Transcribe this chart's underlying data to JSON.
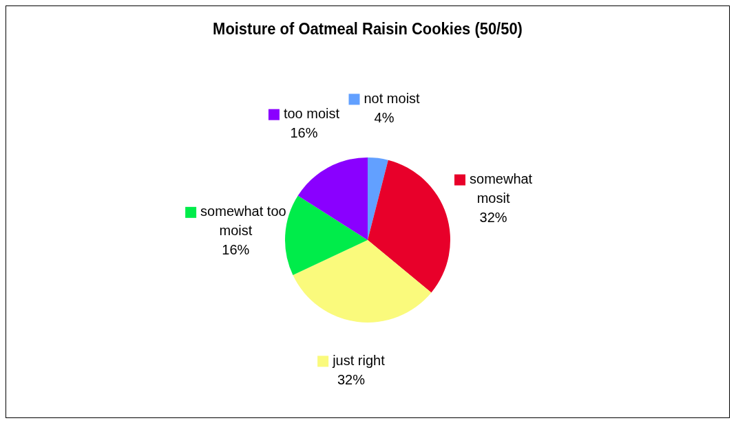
{
  "chart_data": {
    "type": "pie",
    "title": "Moisture of Oatmeal Raisin Cookies (50/50)",
    "categories": [
      "not moist",
      "somewhat mosit",
      "just right",
      "somewhat too moist",
      "too moist"
    ],
    "values": [
      4,
      32,
      32,
      16,
      16
    ],
    "colors": [
      "#62a0ff",
      "#e8002a",
      "#fafa7c",
      "#00ec4a",
      "#8a00ff"
    ],
    "value_labels": [
      "4%",
      "32%",
      "32%",
      "16%",
      "16%"
    ],
    "legend": "left"
  }
}
